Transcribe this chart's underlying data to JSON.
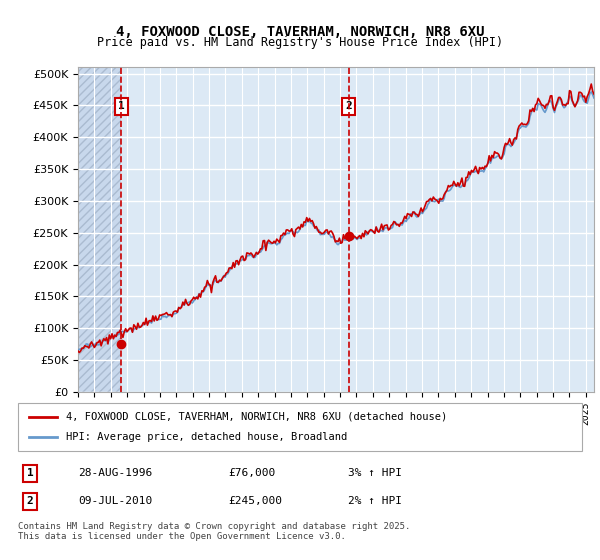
{
  "title_line1": "4, FOXWOOD CLOSE, TAVERHAM, NORWICH, NR8 6XU",
  "title_line2": "Price paid vs. HM Land Registry's House Price Index (HPI)",
  "background_color": "#dce9f5",
  "plot_bg_color": "#dce9f5",
  "hatch_color": "#c0d0e8",
  "grid_color": "#ffffff",
  "ylabel": "",
  "xlabel": "",
  "xmin": 1994.0,
  "xmax": 2025.5,
  "ymin": 0,
  "ymax": 510000,
  "yticks": [
    0,
    50000,
    100000,
    150000,
    200000,
    250000,
    300000,
    350000,
    400000,
    450000,
    500000
  ],
  "ytick_labels": [
    "£0",
    "£50K",
    "£100K",
    "£150K",
    "£200K",
    "£250K",
    "£300K",
    "£350K",
    "£400K",
    "£450K",
    "£500K"
  ],
  "sale1_x": 1996.65,
  "sale1_y": 76000,
  "sale1_label": "1",
  "sale2_x": 2010.52,
  "sale2_y": 245000,
  "sale2_label": "2",
  "legend_line1": "4, FOXWOOD CLOSE, TAVERHAM, NORWICH, NR8 6XU (detached house)",
  "legend_line2": "HPI: Average price, detached house, Broadland",
  "footer_line1": "Contains HM Land Registry data © Crown copyright and database right 2025.",
  "footer_line2": "This data is licensed under the Open Government Licence v3.0.",
  "table_row1_num": "1",
  "table_row1_date": "28-AUG-1996",
  "table_row1_price": "£76,000",
  "table_row1_hpi": "3% ↑ HPI",
  "table_row2_num": "2",
  "table_row2_date": "09-JUL-2010",
  "table_row2_price": "£245,000",
  "table_row2_hpi": "2% ↑ HPI",
  "red_line_color": "#cc0000",
  "blue_line_color": "#6699cc",
  "hatch_xmax": 1996.65
}
